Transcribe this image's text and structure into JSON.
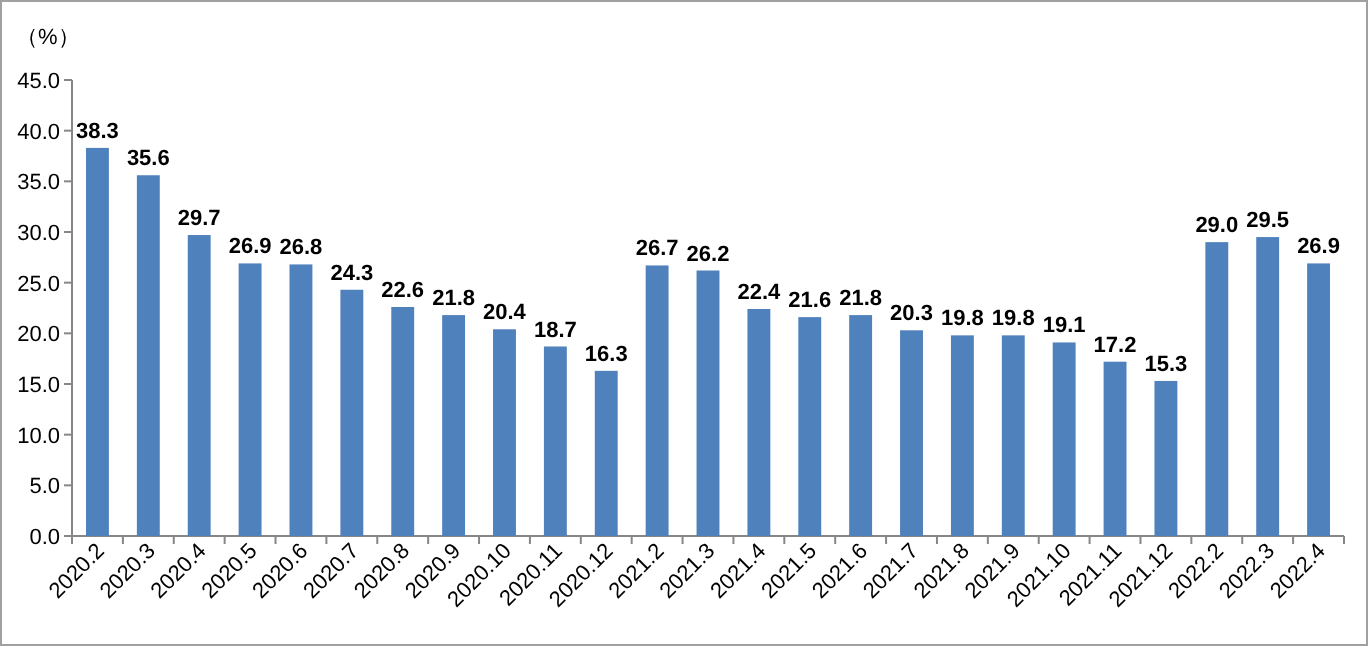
{
  "chart_data": {
    "type": "bar",
    "ylabel": "（%）",
    "categories": [
      "2020.2",
      "2020.3",
      "2020.4",
      "2020.5",
      "2020.6",
      "2020.7",
      "2020.8",
      "2020.9",
      "2020.10",
      "2020.11",
      "2020.12",
      "2021.2",
      "2021.3",
      "2021.4",
      "2021.5",
      "2021.6",
      "2021.7",
      "2021.8",
      "2021.9",
      "2021.10",
      "2021.11",
      "2021.12",
      "2022.2",
      "2022.3",
      "2022.4"
    ],
    "values": [
      38.3,
      35.6,
      29.7,
      26.9,
      26.8,
      24.3,
      22.6,
      21.8,
      20.4,
      18.7,
      16.3,
      26.7,
      26.2,
      22.4,
      21.6,
      21.8,
      20.3,
      19.8,
      19.8,
      19.1,
      17.2,
      15.3,
      29.0,
      29.5,
      26.9
    ],
    "value_labels": [
      "38.3",
      "35.6",
      "29.7",
      "26.9",
      "26.8",
      "24.3",
      "22.6",
      "21.8",
      "20.4",
      "18.7",
      "16.3",
      "26.7",
      "26.2",
      "22.4",
      "21.6",
      "21.8",
      "20.3",
      "19.8",
      "19.8",
      "19.1",
      "17.2",
      "15.3",
      "29.0",
      "29.5",
      "26.9"
    ],
    "color": "#4f81bd",
    "ylim": [
      0,
      45
    ],
    "yticks": [
      {
        "value": 0,
        "label": "0.0"
      },
      {
        "value": 5,
        "label": "5.0"
      },
      {
        "value": 10,
        "label": "10.0"
      },
      {
        "value": 15,
        "label": "15.0"
      },
      {
        "value": 20,
        "label": "20.0"
      },
      {
        "value": 25,
        "label": "25.0"
      },
      {
        "value": 30,
        "label": "30.0"
      },
      {
        "value": 35,
        "label": "35.0"
      },
      {
        "value": 40,
        "label": "40.0"
      },
      {
        "value": 45,
        "label": "45.0"
      }
    ]
  }
}
